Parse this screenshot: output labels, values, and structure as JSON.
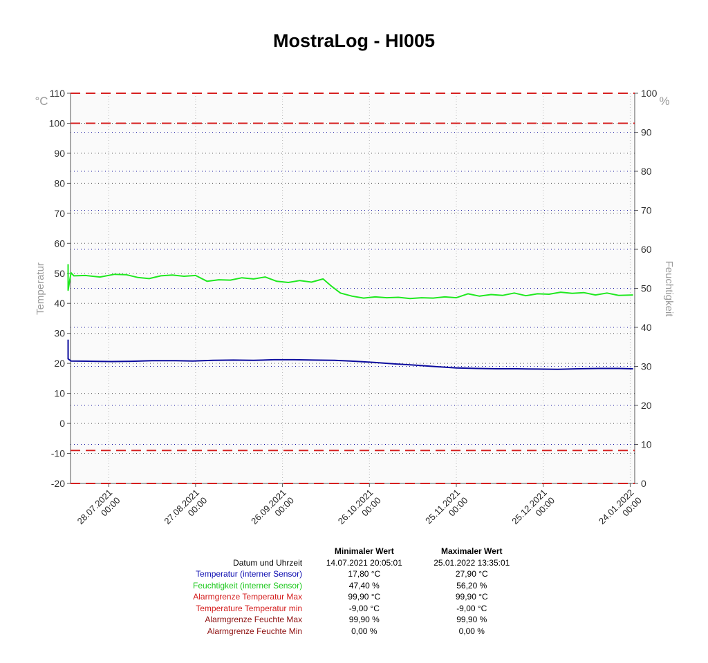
{
  "title": "MostraLog - HI005",
  "colors": {
    "temperature": "#0b0b9e",
    "humidity": "#1fe81f",
    "alarm": "#d62020",
    "grid_temp": "#505050",
    "grid_hum": "#1a1aa0",
    "axis_label": "#9a9a9a"
  },
  "chart_data": {
    "type": "line",
    "title": "MostraLog - HI005",
    "x_ticks": [
      {
        "date": "2021-07-28",
        "label1": "28.07.2021",
        "label2": "00:00"
      },
      {
        "date": "2021-08-27",
        "label1": "27.08.2021",
        "label2": "00:00"
      },
      {
        "date": "2021-09-26",
        "label1": "26.09.2021",
        "label2": "00:00"
      },
      {
        "date": "2021-10-26",
        "label1": "26.10.2021",
        "label2": "00:00"
      },
      {
        "date": "2021-11-25",
        "label1": "25.11.2021",
        "label2": "00:00"
      },
      {
        "date": "2021-12-25",
        "label1": "25.12.2021",
        "label2": "00:00"
      },
      {
        "date": "2022-01-24",
        "label1": "24.01.2022",
        "label2": "00:00"
      }
    ],
    "xlim": [
      "2021-07-14",
      "2022-01-25"
    ],
    "y_left": {
      "label": "Temperatur",
      "unit": "°C",
      "min": -20,
      "max": 110,
      "ticks": [
        110,
        100,
        90,
        80,
        70,
        60,
        50,
        40,
        30,
        20,
        10,
        0,
        -10,
        -20
      ]
    },
    "y_right": {
      "label": "Feuchtigkeit",
      "unit": "%",
      "min": 0,
      "max": 100,
      "ticks": [
        100,
        90,
        80,
        70,
        60,
        50,
        40,
        30,
        20,
        10,
        0
      ]
    },
    "alarm_lines_temp": [
      100,
      -9
    ],
    "series": [
      {
        "name": "Temperatur (interner Sensor)",
        "axis": "left",
        "points": [
          [
            "2021-07-14",
            27.9
          ],
          [
            "2021-07-14",
            21.5
          ],
          [
            "2021-07-15",
            20.8
          ],
          [
            "2021-07-22",
            20.7
          ],
          [
            "2021-07-29",
            20.6
          ],
          [
            "2021-08-05",
            20.7
          ],
          [
            "2021-08-12",
            20.9
          ],
          [
            "2021-08-19",
            20.9
          ],
          [
            "2021-08-26",
            20.8
          ],
          [
            "2021-09-02",
            21.0
          ],
          [
            "2021-09-09",
            21.1
          ],
          [
            "2021-09-16",
            21.0
          ],
          [
            "2021-09-23",
            21.2
          ],
          [
            "2021-09-30",
            21.2
          ],
          [
            "2021-10-07",
            21.1
          ],
          [
            "2021-10-14",
            21.0
          ],
          [
            "2021-10-21",
            20.7
          ],
          [
            "2021-10-28",
            20.3
          ],
          [
            "2021-11-04",
            19.8
          ],
          [
            "2021-11-11",
            19.4
          ],
          [
            "2021-11-18",
            18.9
          ],
          [
            "2021-11-25",
            18.5
          ],
          [
            "2021-12-02",
            18.3
          ],
          [
            "2021-12-09",
            18.2
          ],
          [
            "2021-12-16",
            18.2
          ],
          [
            "2021-12-23",
            18.1
          ],
          [
            "2021-12-30",
            18.0
          ],
          [
            "2022-01-06",
            18.2
          ],
          [
            "2022-01-13",
            18.3
          ],
          [
            "2022-01-20",
            18.3
          ],
          [
            "2022-01-25",
            18.2
          ]
        ]
      },
      {
        "name": "Feuchtigkeit (interner Sensor)",
        "axis": "right",
        "points": [
          [
            "2021-07-14",
            56.2
          ],
          [
            "2021-07-14",
            49.5
          ],
          [
            "2021-07-15",
            54.0
          ],
          [
            "2021-07-16",
            53.2
          ],
          [
            "2021-07-20",
            53.3
          ],
          [
            "2021-07-25",
            52.9
          ],
          [
            "2021-07-30",
            53.6
          ],
          [
            "2021-08-03",
            53.5
          ],
          [
            "2021-08-07",
            52.8
          ],
          [
            "2021-08-11",
            52.5
          ],
          [
            "2021-08-15",
            53.2
          ],
          [
            "2021-08-19",
            53.4
          ],
          [
            "2021-08-23",
            53.1
          ],
          [
            "2021-08-27",
            53.3
          ],
          [
            "2021-08-31",
            51.8
          ],
          [
            "2021-09-04",
            52.2
          ],
          [
            "2021-09-08",
            52.1
          ],
          [
            "2021-09-12",
            52.7
          ],
          [
            "2021-09-16",
            52.4
          ],
          [
            "2021-09-20",
            52.9
          ],
          [
            "2021-09-24",
            51.8
          ],
          [
            "2021-09-28",
            51.5
          ],
          [
            "2021-10-02",
            52.0
          ],
          [
            "2021-10-06",
            51.6
          ],
          [
            "2021-10-10",
            52.4
          ],
          [
            "2021-10-13",
            50.5
          ],
          [
            "2021-10-16",
            48.8
          ],
          [
            "2021-10-20",
            48.0
          ],
          [
            "2021-10-24",
            47.5
          ],
          [
            "2021-10-28",
            47.8
          ],
          [
            "2021-11-01",
            47.6
          ],
          [
            "2021-11-05",
            47.7
          ],
          [
            "2021-11-09",
            47.4
          ],
          [
            "2021-11-13",
            47.6
          ],
          [
            "2021-11-17",
            47.5
          ],
          [
            "2021-11-21",
            47.8
          ],
          [
            "2021-11-25",
            47.6
          ],
          [
            "2021-11-29",
            48.6
          ],
          [
            "2021-12-03",
            48.0
          ],
          [
            "2021-12-07",
            48.4
          ],
          [
            "2021-12-11",
            48.2
          ],
          [
            "2021-12-15",
            48.8
          ],
          [
            "2021-12-19",
            48.1
          ],
          [
            "2021-12-23",
            48.6
          ],
          [
            "2021-12-27",
            48.5
          ],
          [
            "2021-12-31",
            49.0
          ],
          [
            "2022-01-04",
            48.7
          ],
          [
            "2022-01-08",
            48.9
          ],
          [
            "2022-01-12",
            48.3
          ],
          [
            "2022-01-16",
            48.8
          ],
          [
            "2022-01-20",
            48.2
          ],
          [
            "2022-01-25",
            48.3
          ]
        ]
      }
    ]
  },
  "stats": {
    "header_min": "Minimaler Wert",
    "header_max": "Maximaler Wert",
    "rows": [
      {
        "label": "Datum und Uhrzeit",
        "min": "14.07.2021 20:05:01",
        "max": "25.01.2022 13:35:01",
        "color": "#000000"
      },
      {
        "label": "Temperatur (interner Sensor)",
        "min": "17,80 °C",
        "max": "27,90 °C",
        "color": "#0b0bb0"
      },
      {
        "label": "Feuchtigkeit (interner Sensor)",
        "min": "47,40 %",
        "max": "56,20 %",
        "color": "#18c818"
      },
      {
        "label": "Alarmgrenze Temperatur Max",
        "min": "99,90 °C",
        "max": "99,90 °C",
        "color": "#d41c1c"
      },
      {
        "label": "Temperature Temperatur min",
        "min": "-9,00 °C",
        "max": "-9,00 °C",
        "color": "#d41c1c"
      },
      {
        "label": "Alarmgrenze Feuchte Max",
        "min": "99,90 %",
        "max": "99,90 %",
        "color": "#8e1010"
      },
      {
        "label": "Alarmgrenze Feuchte Min",
        "min": "0,00 %",
        "max": "0,00 %",
        "color": "#8e1010"
      }
    ]
  }
}
